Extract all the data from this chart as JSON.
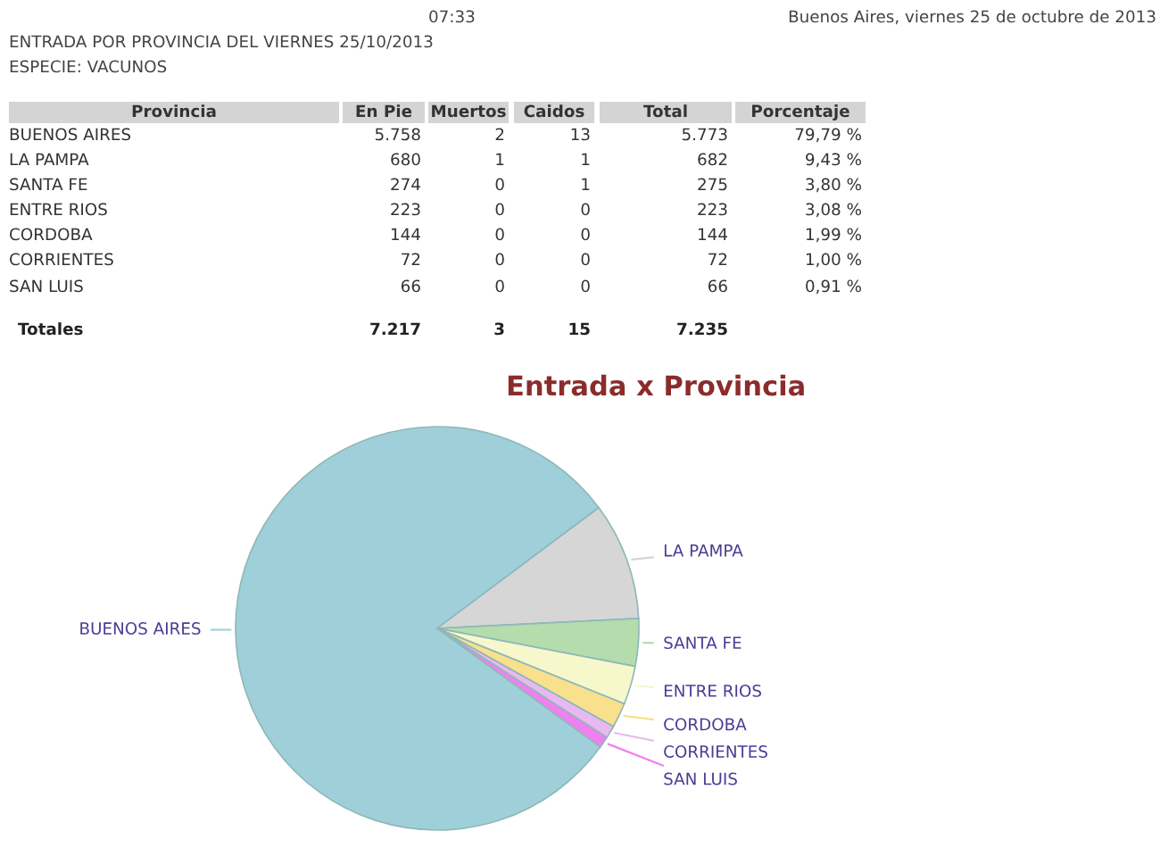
{
  "chart_data": [
    {
      "type": "other",
      "annotations": [
        "07:33",
        "Buenos Aires, viernes 25 de octubre de 2013",
        "ENTRADA POR PROVINCIA DEL VIERNES 25/10/2013",
        "ESPECIE: VACUNOS",
        "Provincia",
        "En Pie",
        "Muertos",
        "Caidos",
        "Total",
        "Porcentaje",
        "BUENOS AIRES",
        "5.758",
        "2",
        "13",
        "5.773",
        "79,79 %",
        "LA PAMPA",
        "680",
        "1",
        "1",
        "682",
        "9,43 %",
        "SANTA FE",
        "274",
        "0",
        "1",
        "275",
        "3,80 %",
        "ENTRE RIOS",
        "223",
        "0",
        "0",
        "223",
        "3,08 %",
        "CORDOBA",
        "144",
        "0",
        "0",
        "144",
        "1,99 %",
        "CORRIENTES",
        "72",
        "0",
        "0",
        "72",
        "1,00 %",
        "SAN LUIS",
        "66",
        "0",
        "0",
        "66",
        "0,91 %",
        "Totales",
        "7.217",
        "3",
        "15",
        "7.235"
      ]
    },
    {
      "type": "pie",
      "title": "Entrada x Provincia",
      "categories": [
        "BUENOS AIRES",
        "LA PAMPA",
        "SANTA FE",
        "ENTRE RIOS",
        "CORDOBA",
        "CORRIENTES",
        "SAN LUIS"
      ],
      "values": [
        79.79,
        9.43,
        3.8,
        3.08,
        1.99,
        1.0,
        0.91
      ],
      "colors": [
        "#9fd0da",
        "#d6d6d6",
        "#b4dcac",
        "#f6f8cc",
        "#f8e08c",
        "#e8b8f0",
        "#f080f0"
      ]
    }
  ]
}
